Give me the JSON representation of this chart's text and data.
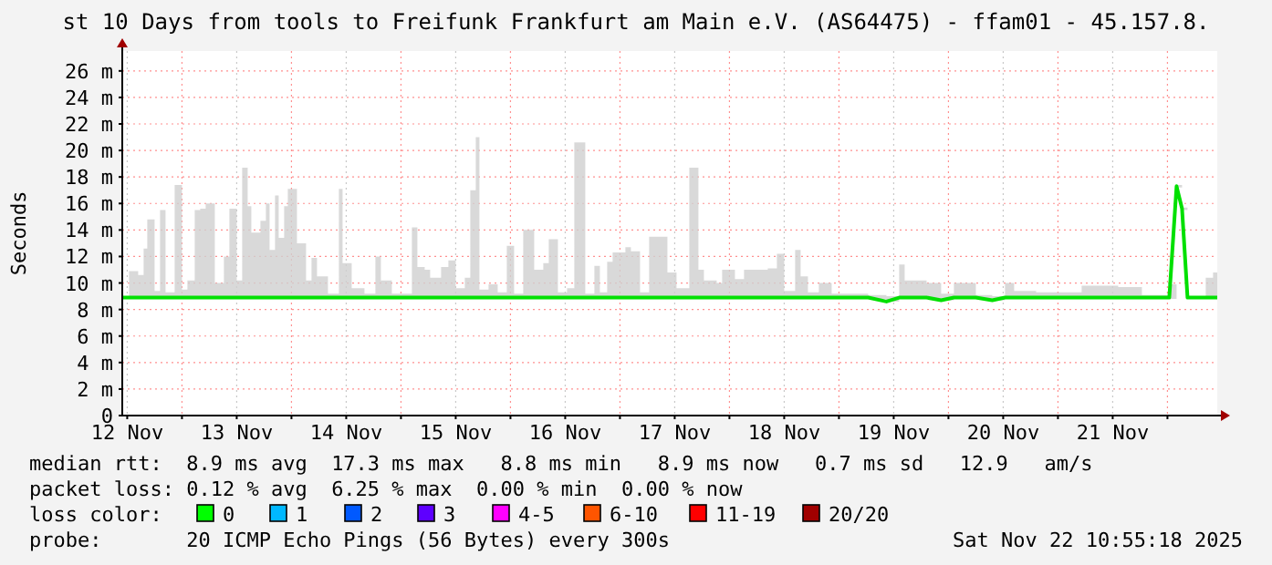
{
  "chart_data": {
    "type": "line",
    "title": "st 10 Days from tools to Freifunk Frankfurt am Main e.V. (AS64475) - ffam01 - 45.157.8.",
    "ylabel": "Seconds",
    "xlim": [
      "2025-11-12T10:55",
      "2025-11-22T10:55"
    ],
    "xticks": [
      {
        "value": "2025-11-12T12:00",
        "label": "12 Nov"
      },
      {
        "value": "2025-11-13T00:00",
        "label": null
      },
      {
        "value": "2025-11-13T12:00",
        "label": "13 Nov"
      },
      {
        "value": "2025-11-14T00:00",
        "label": null
      },
      {
        "value": "2025-11-14T12:00",
        "label": "14 Nov"
      },
      {
        "value": "2025-11-15T00:00",
        "label": null
      },
      {
        "value": "2025-11-15T12:00",
        "label": "15 Nov"
      },
      {
        "value": "2025-11-16T00:00",
        "label": null
      },
      {
        "value": "2025-11-16T12:00",
        "label": "16 Nov"
      },
      {
        "value": "2025-11-17T00:00",
        "label": null
      },
      {
        "value": "2025-11-17T12:00",
        "label": "17 Nov"
      },
      {
        "value": "2025-11-18T00:00",
        "label": null
      },
      {
        "value": "2025-11-18T12:00",
        "label": "18 Nov"
      },
      {
        "value": "2025-11-19T00:00",
        "label": null
      },
      {
        "value": "2025-11-19T12:00",
        "label": "19 Nov"
      },
      {
        "value": "2025-11-20T00:00",
        "label": null
      },
      {
        "value": "2025-11-20T12:00",
        "label": "20 Nov"
      },
      {
        "value": "2025-11-21T00:00",
        "label": null
      },
      {
        "value": "2025-11-21T12:00",
        "label": "21 Nov"
      },
      {
        "value": "2025-11-22T00:00",
        "label": null
      }
    ],
    "ylim": [
      0,
      27.5
    ],
    "yticks": [
      {
        "value": 0,
        "label": "0"
      },
      {
        "value": 2,
        "label": "2 m"
      },
      {
        "value": 4,
        "label": "4 m"
      },
      {
        "value": 6,
        "label": "6 m"
      },
      {
        "value": 8,
        "label": "8 m"
      },
      {
        "value": 10,
        "label": "10 m"
      },
      {
        "value": 12,
        "label": "12 m"
      },
      {
        "value": 14,
        "label": "14 m"
      },
      {
        "value": 16,
        "label": "16 m"
      },
      {
        "value": 18,
        "label": "18 m"
      },
      {
        "value": 20,
        "label": "20 m"
      },
      {
        "value": 22,
        "label": "22 m"
      },
      {
        "value": 24,
        "label": "24 m"
      },
      {
        "value": 26,
        "label": "26 m"
      }
    ],
    "grid": true,
    "marker": "none",
    "line_style": "solid",
    "series": [
      {
        "color": "#00e000",
        "x": [
          "2025-11-12T11:00",
          "2025-11-12T12:24",
          "2025-11-12T14:24",
          "2025-11-12T15:36",
          "2025-11-12T16:24",
          "2025-11-12T18:00",
          "2025-11-12T19:12",
          "2025-11-12T20:24",
          "2025-11-12T22:24",
          "2025-11-13T00:00",
          "2025-11-13T01:12",
          "2025-11-13T02:48",
          "2025-11-13T04:00",
          "2025-11-13T05:12",
          "2025-11-13T07:12",
          "2025-11-13T09:12",
          "2025-11-13T10:24",
          "2025-11-13T12:00",
          "2025-11-13T13:12",
          "2025-11-13T14:24",
          "2025-11-13T15:12",
          "2025-11-13T17:12",
          "2025-11-13T18:24",
          "2025-11-13T19:12",
          "2025-11-13T20:24",
          "2025-11-13T21:12",
          "2025-11-13T22:24",
          "2025-11-13T23:12",
          "2025-11-14T01:12",
          "2025-11-14T03:12",
          "2025-11-14T04:24",
          "2025-11-14T05:36",
          "2025-11-14T08:00",
          "2025-11-14T10:24",
          "2025-11-14T11:12",
          "2025-11-14T13:12",
          "2025-11-14T16:00",
          "2025-11-14T18:24",
          "2025-11-14T19:36",
          "2025-11-14T22:00",
          "2025-11-15T02:24",
          "2025-11-15T03:36",
          "2025-11-15T05:12",
          "2025-11-15T06:24",
          "2025-11-15T08:48",
          "2025-11-15T10:24",
          "2025-11-15T12:00",
          "2025-11-15T14:00",
          "2025-11-15T15:12",
          "2025-11-15T16:24",
          "2025-11-15T17:12",
          "2025-11-15T19:12",
          "2025-11-15T21:12",
          "2025-11-15T23:12",
          "2025-11-16T00:48",
          "2025-11-16T02:48",
          "2025-11-16T05:12",
          "2025-11-16T07:12",
          "2025-11-16T08:24",
          "2025-11-16T10:24",
          "2025-11-16T12:24",
          "2025-11-16T14:00",
          "2025-11-16T16:24",
          "2025-11-16T18:24",
          "2025-11-16T19:36",
          "2025-11-16T21:12",
          "2025-11-16T22:24",
          "2025-11-17T01:12",
          "2025-11-17T02:24",
          "2025-11-17T04:24",
          "2025-11-17T06:24",
          "2025-11-17T10:24",
          "2025-11-17T12:24",
          "2025-11-17T15:12",
          "2025-11-17T17:12",
          "2025-11-17T18:24",
          "2025-11-17T21:12",
          "2025-11-17T22:24",
          "2025-11-18T01:12",
          "2025-11-18T03:12",
          "2025-11-18T05:36",
          "2025-11-18T08:24",
          "2025-11-18T10:24",
          "2025-11-18T12:00",
          "2025-11-18T14:24",
          "2025-11-18T15:36",
          "2025-11-18T17:12",
          "2025-11-18T19:36",
          "2025-11-18T22:24",
          "2025-11-19T06:24",
          "2025-11-19T10:24",
          "2025-11-19T13:12",
          "2025-11-19T14:24",
          "2025-11-19T19:12",
          "2025-11-19T22:24",
          "2025-11-20T01:12",
          "2025-11-20T03:12",
          "2025-11-20T06:00",
          "2025-11-20T09:36",
          "2025-11-20T12:24",
          "2025-11-20T14:24",
          "2025-11-20T19:12",
          "2025-11-21T01:12",
          "2025-11-21T05:12",
          "2025-11-21T13:12",
          "2025-11-21T18:24",
          "2025-11-22T00:24",
          "2025-11-22T02:00",
          "2025-11-22T03:12",
          "2025-11-22T04:24",
          "2025-11-22T08:24",
          "2025-11-22T10:00",
          "2025-11-22T10:55"
        ],
        "values": [
          8.9,
          8.9,
          8.9,
          8.9,
          8.9,
          8.9,
          8.9,
          8.9,
          8.9,
          8.9,
          8.9,
          8.9,
          8.9,
          8.9,
          8.9,
          8.9,
          8.9,
          8.9,
          8.9,
          8.9,
          8.9,
          8.9,
          8.9,
          8.9,
          8.9,
          8.9,
          8.9,
          8.9,
          8.9,
          8.9,
          8.9,
          8.9,
          8.9,
          8.9,
          8.9,
          8.9,
          8.9,
          8.9,
          8.9,
          8.9,
          8.9,
          8.9,
          8.9,
          8.9,
          8.9,
          8.9,
          8.9,
          8.9,
          8.9,
          8.9,
          8.9,
          8.9,
          8.9,
          8.9,
          8.9,
          8.9,
          8.9,
          8.9,
          8.9,
          8.9,
          8.9,
          8.9,
          8.9,
          8.9,
          8.9,
          8.9,
          8.9,
          8.9,
          8.9,
          8.9,
          8.9,
          8.9,
          8.9,
          8.9,
          8.9,
          8.9,
          8.9,
          8.9,
          8.9,
          8.9,
          8.9,
          8.9,
          8.9,
          8.9,
          8.9,
          8.9,
          8.9,
          8.9,
          8.9,
          8.9,
          8.6,
          8.9,
          8.9,
          8.9,
          8.7,
          8.9,
          8.9,
          8.9,
          8.7,
          8.9,
          8.9,
          8.9,
          8.9,
          8.9,
          8.9,
          8.9,
          8.9,
          17.3,
          15.6,
          8.9,
          8.9,
          8.9,
          8.9
        ],
        "lower": [
          8.8,
          8.8,
          8.8,
          8.8,
          8.8,
          8.8,
          8.8,
          8.8,
          8.8,
          8.8,
          8.8,
          8.8,
          8.8,
          8.8,
          8.8,
          8.8,
          8.8,
          8.8,
          8.8,
          8.8,
          8.8,
          8.8,
          8.8,
          8.8,
          8.8,
          8.8,
          8.8,
          8.8,
          8.8,
          8.8,
          8.8,
          8.8,
          8.8,
          8.8,
          8.8,
          8.8,
          8.8,
          8.8,
          8.8,
          8.8,
          8.8,
          8.8,
          8.8,
          8.8,
          8.8,
          8.8,
          8.8,
          8.8,
          8.8,
          8.8,
          8.8,
          8.8,
          8.8,
          8.8,
          8.8,
          8.8,
          8.8,
          8.8,
          8.8,
          8.8,
          8.8,
          8.8,
          8.8,
          8.8,
          8.8,
          8.8,
          8.8,
          8.8,
          8.8,
          8.8,
          8.8,
          8.8,
          8.8,
          8.8,
          8.8,
          8.8,
          8.8,
          8.8,
          8.8,
          8.8,
          8.8,
          8.8,
          8.8,
          8.8,
          8.8,
          8.8,
          8.8,
          8.8,
          8.8,
          8.8,
          8.6,
          8.8,
          8.8,
          8.8,
          8.7,
          8.8,
          8.8,
          8.8,
          8.7,
          8.8,
          8.8,
          8.8,
          8.8,
          8.8,
          8.8,
          8.8,
          8.8,
          17.2,
          15.5,
          8.8,
          8.8,
          8.8,
          8.8
        ],
        "upper": [
          9.0,
          10.9,
          10.6,
          12.6,
          14.8,
          9.4,
          15.5,
          9.3,
          17.4,
          9.5,
          10.2,
          15.5,
          15.6,
          16.0,
          10.0,
          12.0,
          15.6,
          10.2,
          18.7,
          15.8,
          13.8,
          14.7,
          16.0,
          12.5,
          16.6,
          13.4,
          15.8,
          17.1,
          13.0,
          10.2,
          11.9,
          10.5,
          9.2,
          17.1,
          11.5,
          9.6,
          9.2,
          12.0,
          10.2,
          9.2,
          14.2,
          11.2,
          11.0,
          10.4,
          11.2,
          11.7,
          9.6,
          10.4,
          17.0,
          21.0,
          9.5,
          9.9,
          9.3,
          12.8,
          9.2,
          14.0,
          11.0,
          11.5,
          13.3,
          9.3,
          9.6,
          20.6,
          9.2,
          11.3,
          9.3,
          11.6,
          12.3,
          12.7,
          12.4,
          9.3,
          13.5,
          10.8,
          9.6,
          18.7,
          11.0,
          10.2,
          10.0,
          11.0,
          10.3,
          11.0,
          11.0,
          11.1,
          12.2,
          9.4,
          12.5,
          10.5,
          9.3,
          10.0,
          9.2,
          9.1,
          9.0,
          11.4,
          10.2,
          10.0,
          9.2,
          10.0,
          10.0,
          9.1,
          9.0,
          10.0,
          9.4,
          9.3,
          9.3,
          9.8,
          9.7,
          9.1,
          9.9,
          17.4,
          15.7,
          9.0,
          10.4,
          10.8,
          9.0
        ]
      }
    ],
    "annotations": [
      "median rtt:  8.9 ms avg  17.3 ms max   8.8 ms min   8.9 ms now   0.7 ms sd   12.9   am/s",
      "packet loss: 0.12 % avg  6.25 % max  0.00 % min  0.00 % now",
      "loss color:",
      "0",
      "1",
      "2",
      "3",
      "4-5",
      "6-10",
      "11-19",
      "20/20",
      "probe:       20 ICMP Echo Pings (56 Bytes) every 300s",
      "Sat Nov 22 10:55:18 2025"
    ]
  }
}
